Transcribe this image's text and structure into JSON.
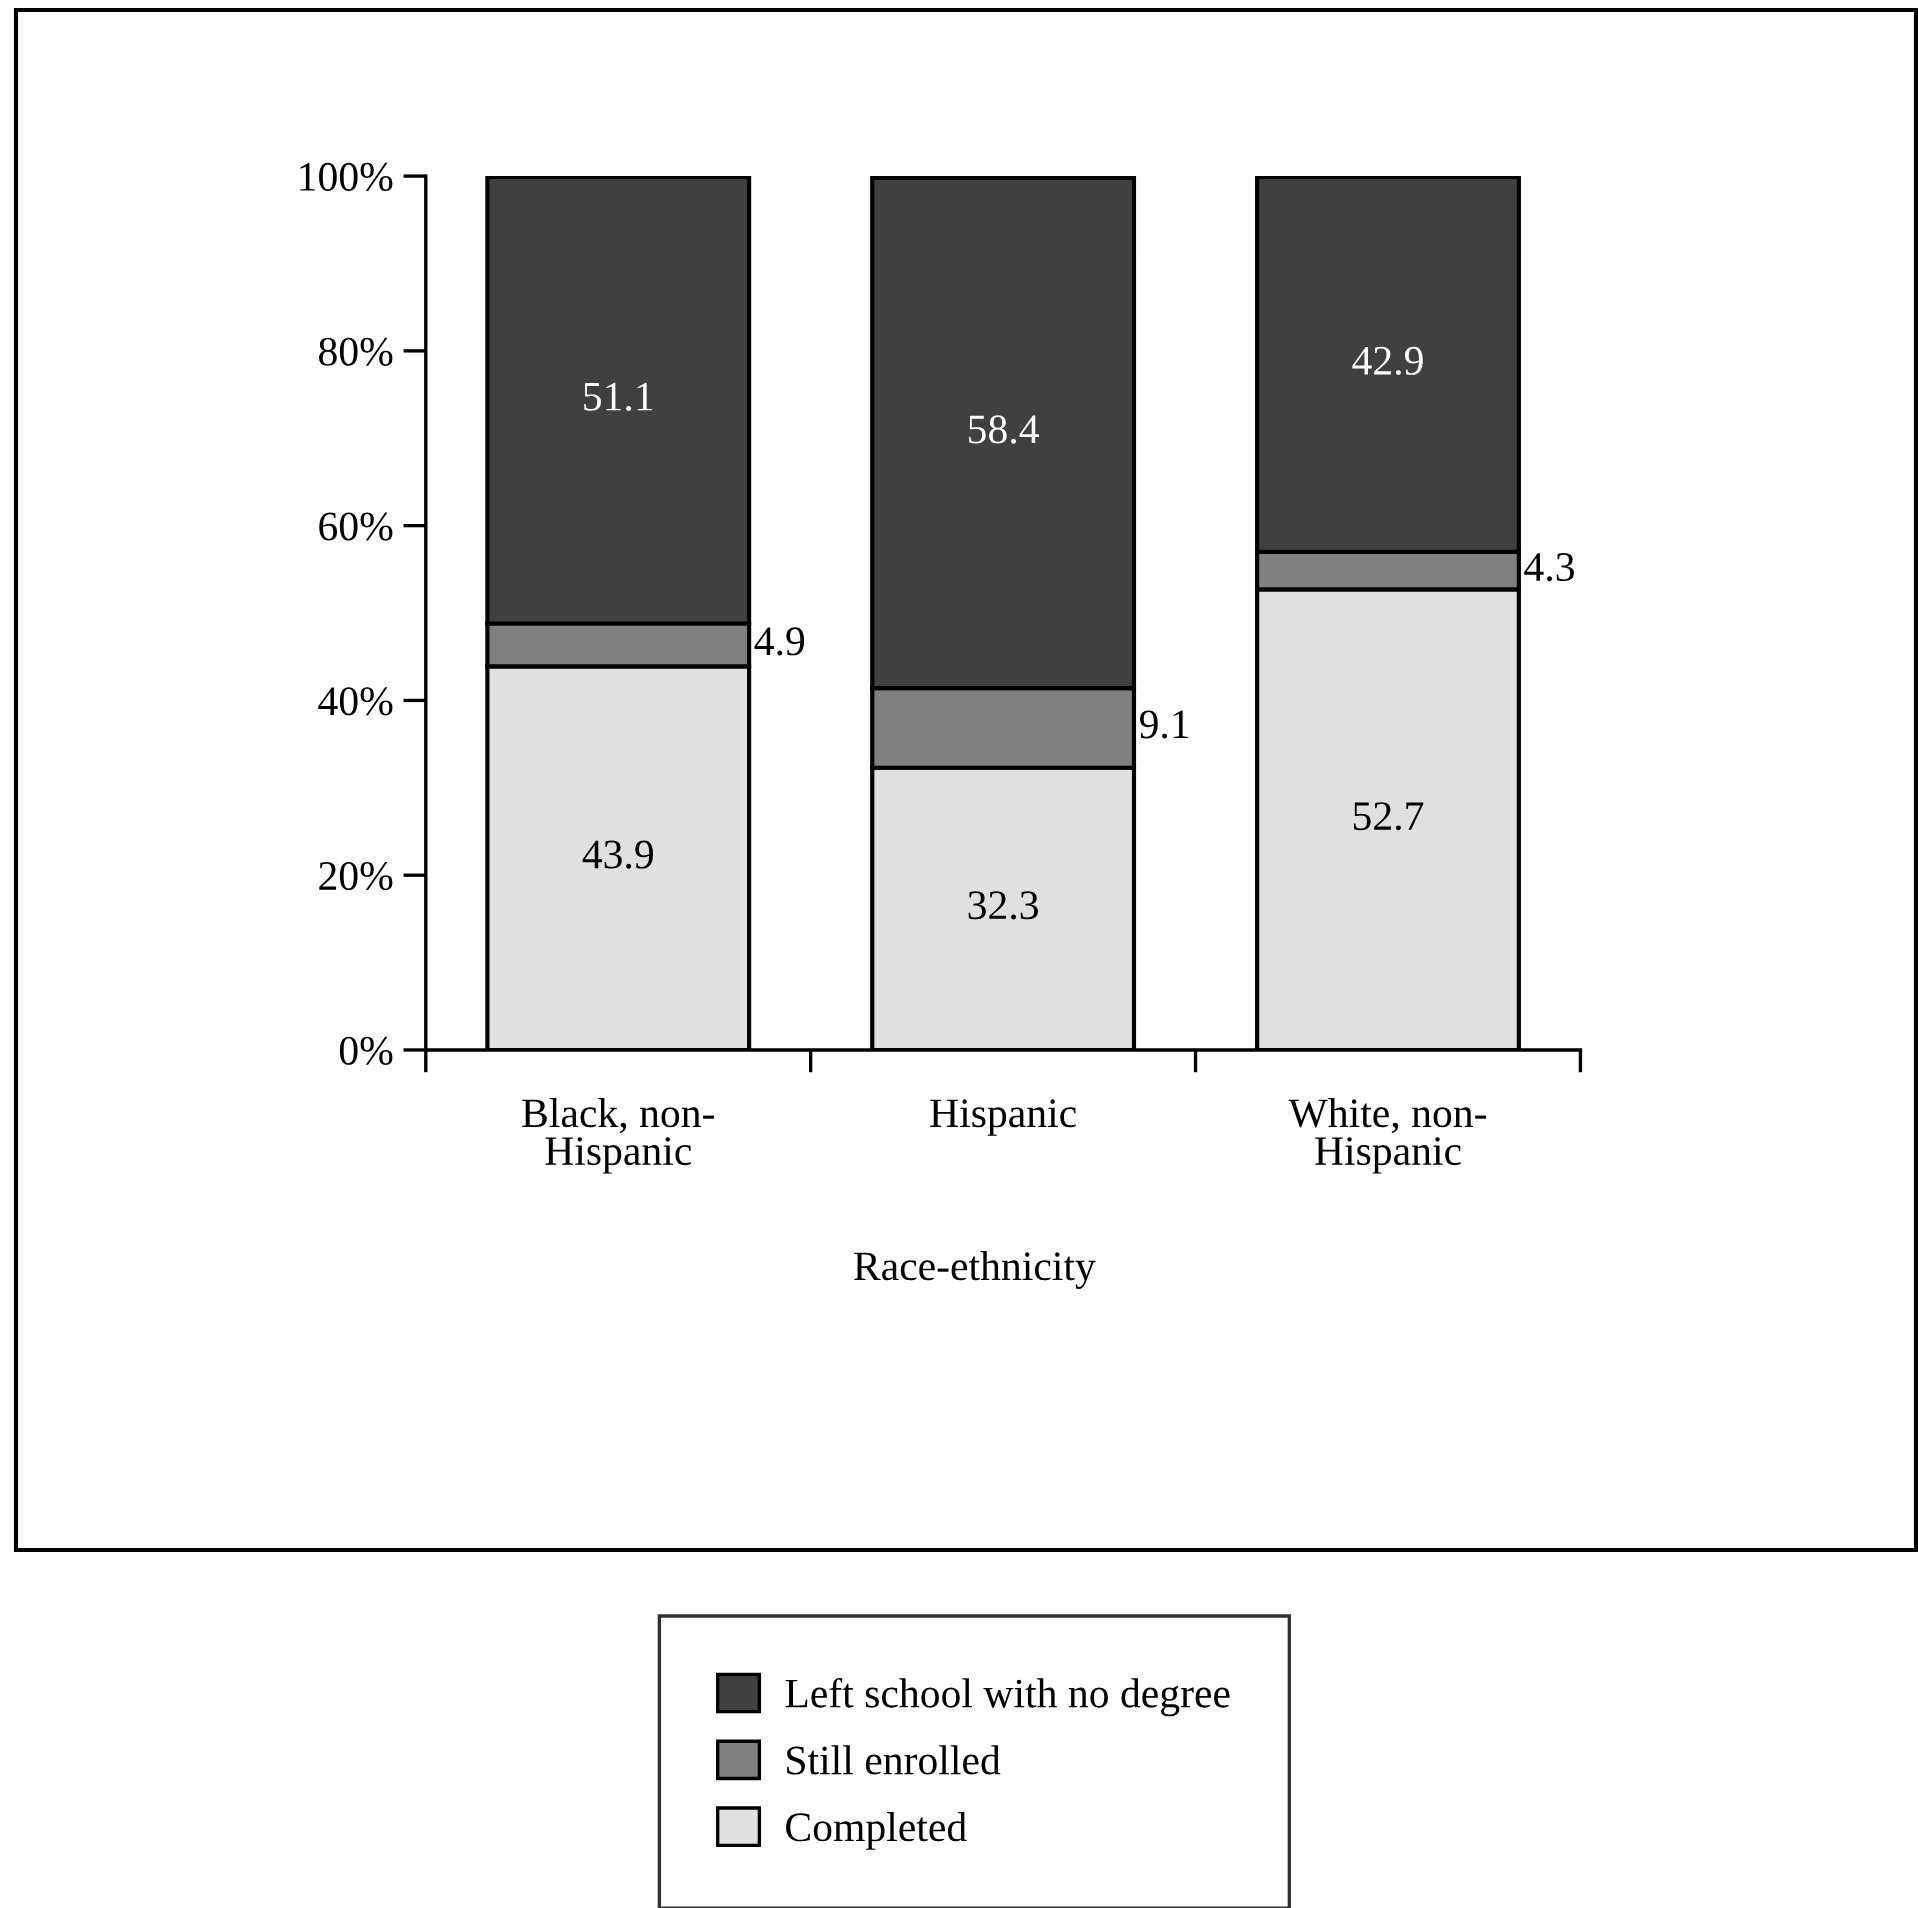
{
  "chart_data": {
    "type": "bar",
    "stacked": true,
    "categories": [
      "Black, non-\nHispanic",
      "Hispanic",
      "White, non-\nHispanic"
    ],
    "xlabel": "Race-ethnicity",
    "series": [
      {
        "name": "Completed",
        "color": "#e0e0e0",
        "values": [
          43.9,
          32.3,
          52.7
        ]
      },
      {
        "name": "Still enrolled",
        "color": "#808080",
        "values": [
          4.9,
          9.1,
          4.3
        ]
      },
      {
        "name": "Left school with no degree",
        "color": "#404040",
        "values": [
          51.1,
          58.4,
          42.9
        ]
      }
    ],
    "ylim": [
      0,
      100
    ],
    "yticks": [
      {
        "value": 0,
        "label": "0%"
      },
      {
        "value": 20,
        "label": "20%"
      },
      {
        "value": 40,
        "label": "40%"
      },
      {
        "value": 60,
        "label": "60%"
      },
      {
        "value": 80,
        "label": "80%"
      },
      {
        "value": 100,
        "label": "100%"
      }
    ],
    "data_labels": true,
    "grid": false,
    "legend": "bottom"
  }
}
